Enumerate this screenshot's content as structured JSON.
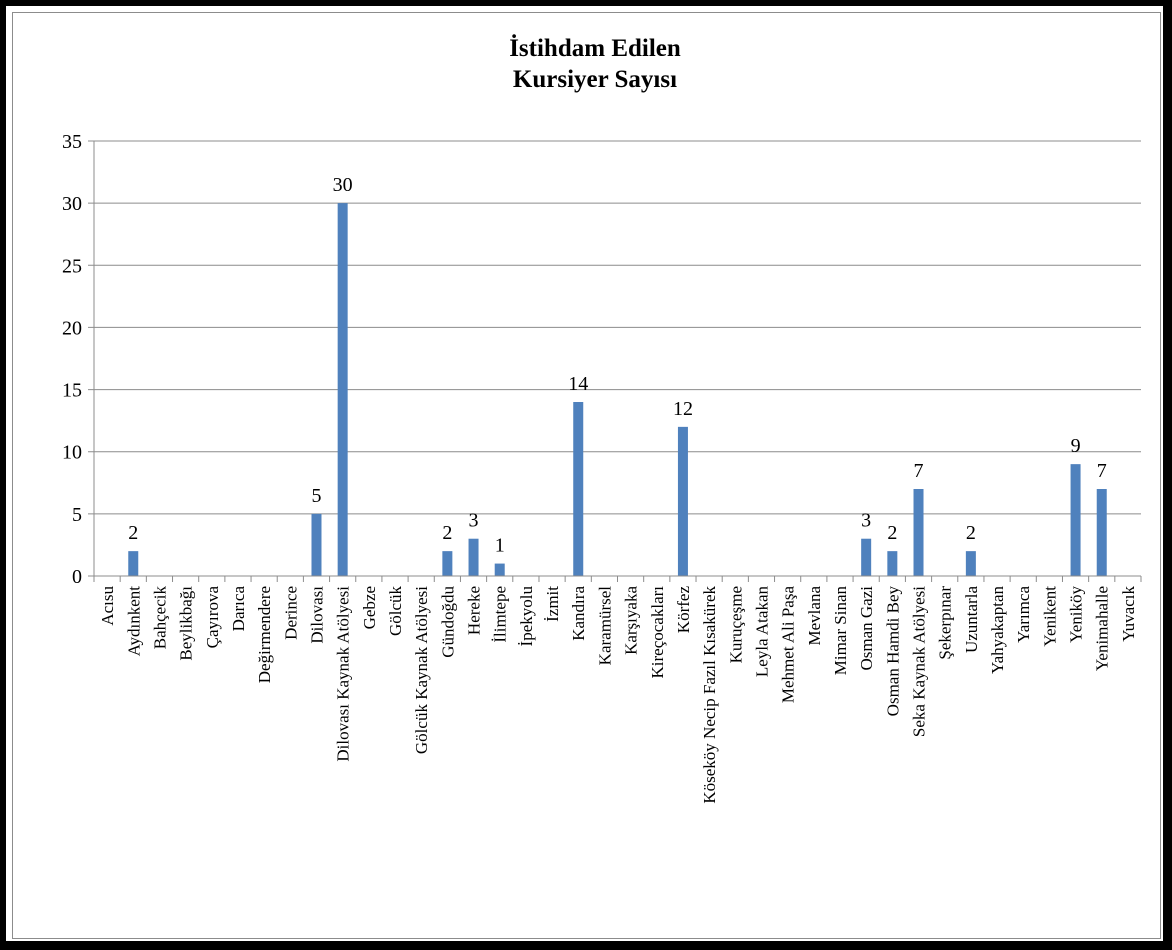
{
  "chart_data": {
    "type": "bar",
    "title_lines": [
      "İstihdam Edilen",
      "Kursiyer  Sayısı"
    ],
    "xlabel": "",
    "ylabel": "",
    "ylim": [
      0,
      35
    ],
    "yticks": [
      0,
      5,
      10,
      15,
      20,
      25,
      30,
      35
    ],
    "grid": true,
    "legend": "none",
    "bar_color": "#4f81bd",
    "categories": [
      "Acısu",
      "Aydınkent",
      "Bahçecik",
      "Beylikbağı",
      "Çayırova",
      "Darıca",
      "Değirmendere",
      "Derince",
      "Dilovası",
      "Dilovası Kaynak Atölyesi",
      "Gebze",
      "Gölcük",
      "Gölcük Kaynak Atölyesi",
      "Gündoğdu",
      "Hereke",
      "İlimtepe",
      "İpekyolu",
      "İzmit",
      "Kandıra",
      "Karamürsel",
      "Karşıyaka",
      "Kireçocakları",
      "Körfez",
      "Köseköy Necip Fazıl Kısakürek",
      "Kuruçeşme",
      "Leyla Atakan",
      "Mehmet Ali Paşa",
      "Mevlana",
      "Mimar Sinan",
      "Osman Gazi",
      "Osman Hamdi Bey",
      "Seka Kaynak Atölyesi",
      "Şekerpınar",
      "Uzuntarla",
      "Yahyakaptan",
      "Yarımca",
      "Yenikent",
      "Yeniköy",
      "Yenimahalle",
      "Yuvacık"
    ],
    "values": [
      0,
      2,
      0,
      0,
      0,
      0,
      0,
      0,
      5,
      30,
      0,
      0,
      0,
      2,
      3,
      1,
      0,
      0,
      14,
      0,
      0,
      0,
      12,
      0,
      0,
      0,
      0,
      0,
      0,
      3,
      2,
      7,
      0,
      2,
      0,
      0,
      0,
      9,
      7,
      0
    ]
  }
}
